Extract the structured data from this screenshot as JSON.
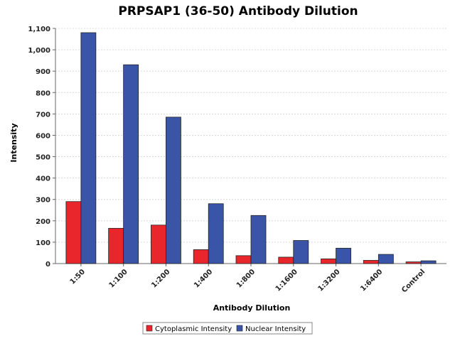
{
  "chart_data": {
    "type": "bar",
    "title": "PRPSAP1 (36-50) Antibody Dilution",
    "xlabel": "Antibody Dilution",
    "ylabel": "Intensity",
    "categories": [
      "1:50",
      "1:100",
      "1:200",
      "1:400",
      "1:800",
      "1:1600",
      "1:3200",
      "1:6400",
      "Control"
    ],
    "series": [
      {
        "name": "Cytoplasmic Intensity",
        "color": "#e8262b",
        "values": [
          290,
          165,
          180,
          65,
          37,
          30,
          22,
          15,
          8
        ]
      },
      {
        "name": "Nuclear Intensity",
        "color": "#3a55a8",
        "values": [
          1080,
          930,
          685,
          280,
          225,
          108,
          72,
          43,
          13
        ]
      }
    ],
    "ylim": [
      0,
      1100
    ],
    "yticks": [
      0,
      100,
      200,
      300,
      400,
      500,
      600,
      700,
      800,
      900,
      1000,
      1100
    ],
    "ytick_labels": [
      "0",
      "100",
      "200",
      "300",
      "400",
      "500",
      "600",
      "700",
      "800",
      "900",
      "1,000",
      "1,100"
    ],
    "grid": true,
    "legend_position": "bottom"
  }
}
